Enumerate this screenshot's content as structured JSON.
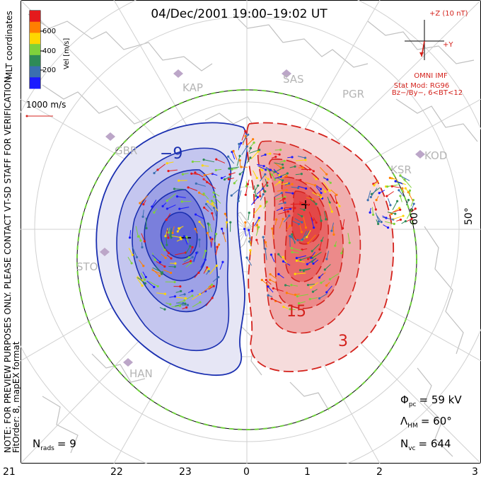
{
  "title": "04/Dec/2001 19:00–19:02 UT",
  "colorbar": {
    "axis_label": "Vel [m/s]",
    "ticks": [
      "600",
      "400",
      "200"
    ],
    "colors": [
      "#e41a1c",
      "#ff7f00",
      "#ffd700",
      "#7fd13b",
      "#2e8b57",
      "#3a6fb0",
      "#1a1aff"
    ]
  },
  "coord_label": "MLT coordinates",
  "scale_vector_label": "1000 m/s",
  "notes": [
    "NOTE: FOR PREVIEW PURPOSES ONLY. PLEASE CONTACT VT-SD STAFF FOR VERIFICATION.",
    "FitOrder: 8,  mapEX format"
  ],
  "imf": {
    "z_label": "+Z (10 nT)",
    "y_label": "+Y",
    "source": "OMNI IMF",
    "model": "Stat Mod: RG96",
    "bin": "Bz−/By−, 6<BT<12"
  },
  "stations": [
    "KAP",
    "SAS",
    "PGR",
    "GBR",
    "KOD",
    "KSR",
    "STO",
    "HAN"
  ],
  "contour_labels": {
    "negative": "−9",
    "positive_1": "15",
    "positive_2": "3"
  },
  "lat_labels": [
    "60°",
    "50°"
  ],
  "stats": {
    "phi_symbol": "Φ",
    "phi_sub": "pc",
    "phi_value": "= 59 kV",
    "lambda_symbol": "Λ",
    "lambda_sub": "HM",
    "lambda_value": "= 60°",
    "n_sym": "N",
    "n_sub": "vc",
    "n_value": "= 644",
    "nrads_sym": "N",
    "nrads_sub": "rads",
    "nrads_value": "= 9"
  },
  "mlt_axis": [
    "21",
    "22",
    "23",
    "0",
    "1",
    "2",
    "3"
  ],
  "colors": {
    "negative_fill": "#5c66d6",
    "positive_fill": "#e8424a",
    "negative_line": "#1a2fb0",
    "positive_line": "#d4221c",
    "boundary": "#6fd13b",
    "coastline": "#c0c0c0",
    "station": "#bca6c8"
  }
}
